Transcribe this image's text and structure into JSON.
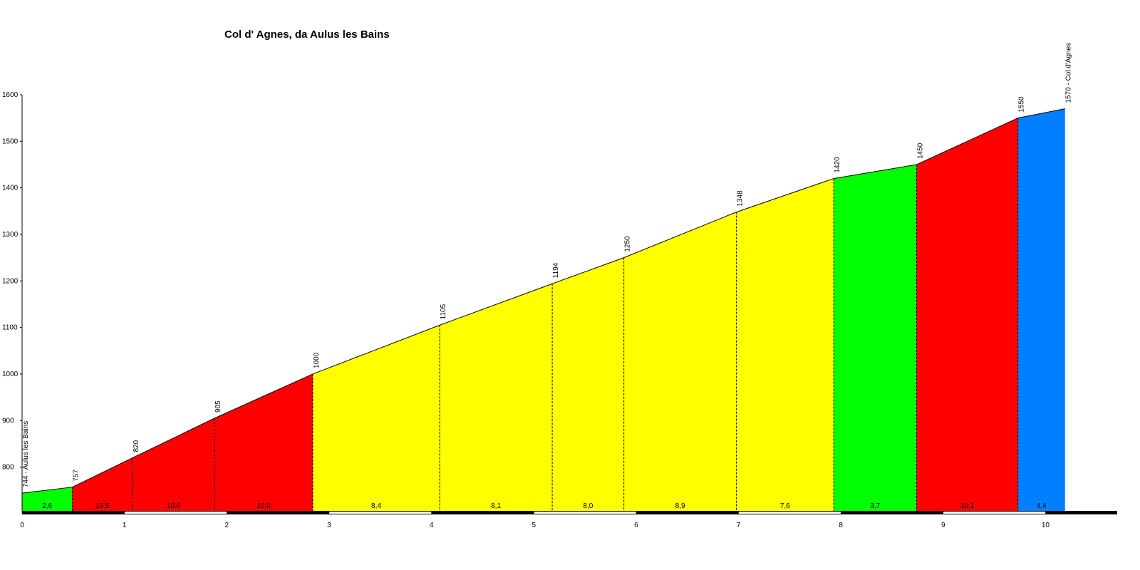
{
  "chart_data": {
    "type": "area",
    "title": "Col d' Agnes, da Aulus les Bains",
    "x": [
      0,
      0.49,
      1.08,
      1.88,
      2.84,
      4.08,
      5.18,
      5.88,
      6.98,
      7.93,
      8.74,
      9.73,
      10.19
    ],
    "series": [
      {
        "values": [
          744,
          757,
          820,
          905,
          1000,
          1105,
          1194,
          1250,
          1348,
          1420,
          1450,
          1550,
          1570
        ],
        "value_labels": [
          "744 - Aulus les Bains",
          "757",
          "820",
          "905",
          "1000",
          "1105",
          "1194",
          "1250",
          "1348",
          "1420",
          "1450",
          "1550",
          "1570 - Col d'Agnes"
        ]
      }
    ],
    "segment_gradients": [
      2.6,
      10.5,
      10.6,
      10.0,
      8.4,
      8.1,
      8.0,
      8.9,
      7.6,
      3.7,
      10.1,
      4.4
    ],
    "segment_gradient_labels": [
      "2,6",
      "10,5",
      "10,6",
      "10,0",
      "8,4",
      "8,1",
      "8,0",
      "8,9",
      "7,6",
      "3,7",
      "10,1",
      "4,4"
    ],
    "segment_colors": [
      "#00ff00",
      "#ff0000",
      "#ff0000",
      "#ff0000",
      "#ffff00",
      "#ffff00",
      "#ffff00",
      "#ffff00",
      "#ffff00",
      "#00ff00",
      "#ff0000",
      "#0080ff"
    ],
    "xlim": [
      0,
      10.7
    ],
    "ylim": [
      706,
      1600
    ],
    "xticks": [
      0,
      1,
      2,
      3,
      4,
      5,
      6,
      7,
      8,
      9,
      10
    ],
    "yticks": [
      800,
      900,
      1000,
      1100,
      1200,
      1300,
      1400,
      1500,
      1600
    ]
  }
}
